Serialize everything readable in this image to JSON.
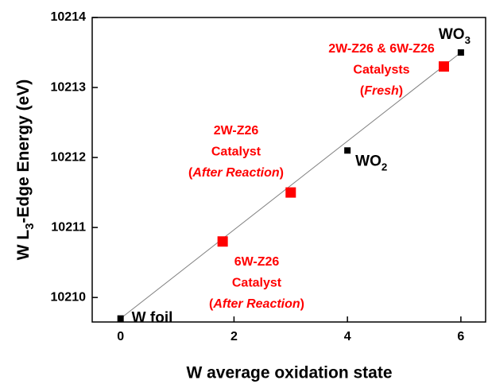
{
  "chart_data": {
    "type": "scatter",
    "xlabel": "W average oxidation state",
    "ylabel": [
      {
        "text": "W L"
      },
      {
        "text": "3",
        "sub": true
      },
      {
        "text": "-Edge Energy (eV)"
      }
    ],
    "xlim": [
      -0.5,
      6.45
    ],
    "ylim": [
      10209.65,
      10214
    ],
    "xticks": [
      0,
      2,
      4,
      6
    ],
    "yticks": [
      10210,
      10211,
      10212,
      10213,
      10214
    ],
    "fit": {
      "color": "#808080",
      "x": [
        0,
        6
      ],
      "y": [
        10209.7,
        10213.5
      ]
    },
    "series": [
      {
        "color": "#000000",
        "x": [
          0,
          4,
          6
        ],
        "values": [
          10209.7,
          10212.1,
          10213.5
        ],
        "labels": [
          [
            {
              "text": "W foil"
            }
          ],
          [
            {
              "text": "WO"
            },
            {
              "text": "2",
              "sub": true
            }
          ],
          [
            {
              "text": "WO"
            },
            {
              "text": "3",
              "sub": true
            }
          ]
        ]
      },
      {
        "color": "#ff0000",
        "x": [
          1.8,
          3.0,
          5.7
        ],
        "values": [
          10210.8,
          10211.5,
          10213.3
        ]
      }
    ],
    "annotations": [
      {
        "color": "#ff0000",
        "lines": [
          [
            {
              "text": "2W-Z26 & 6W-Z26"
            }
          ],
          [
            {
              "text": "Catalysts"
            }
          ],
          [
            {
              "text": "("
            },
            {
              "text": "Fresh",
              "italic": true
            },
            {
              "text": ")"
            }
          ]
        ]
      },
      {
        "color": "#ff0000",
        "lines": [
          [
            {
              "text": "2W-Z26"
            }
          ],
          [
            {
              "text": "Catalyst"
            }
          ],
          [
            {
              "text": "("
            },
            {
              "text": "After Reaction",
              "italic": true
            },
            {
              "text": ")"
            }
          ]
        ]
      },
      {
        "color": "#ff0000",
        "lines": [
          [
            {
              "text": "6W-Z26"
            }
          ],
          [
            {
              "text": "Catalyst"
            }
          ],
          [
            {
              "text": "("
            },
            {
              "text": "After Reaction",
              "italic": true
            },
            {
              "text": ")"
            }
          ]
        ]
      }
    ]
  }
}
